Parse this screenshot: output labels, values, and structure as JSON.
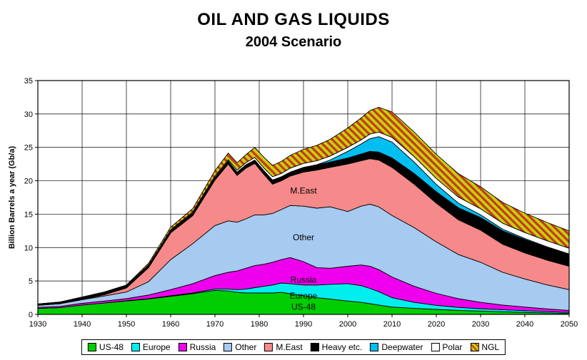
{
  "title": {
    "line1": "OIL AND GAS LIQUIDS",
    "line2": "2004 Scenario"
  },
  "chart_data": {
    "type": "area",
    "stacked": true,
    "title": "OIL AND GAS LIQUIDS",
    "subtitle": "2004 Scenario",
    "xlabel": "",
    "ylabel": "Billion Barrels a year (Gb/a)",
    "xlim": [
      1930,
      2050
    ],
    "ylim": [
      0,
      35
    ],
    "x_ticks": [
      1930,
      1940,
      1950,
      1960,
      1970,
      1980,
      1990,
      2000,
      2010,
      2020,
      2030,
      2040,
      2050
    ],
    "y_ticks": [
      0,
      5,
      10,
      15,
      20,
      25,
      30,
      35
    ],
    "grid": true,
    "legend_position": "bottom",
    "x": [
      1930,
      1935,
      1940,
      1945,
      1950,
      1955,
      1960,
      1965,
      1970,
      1973,
      1975,
      1977,
      1979,
      1981,
      1983,
      1985,
      1987,
      1990,
      1993,
      1996,
      2000,
      2003,
      2005,
      2007,
      2010,
      2015,
      2020,
      2025,
      2030,
      2035,
      2040,
      2045,
      2050
    ],
    "series": [
      {
        "name": "US-48",
        "color": "#00CE00",
        "values": [
          0.9,
          1.0,
          1.4,
          1.7,
          2.0,
          2.3,
          2.7,
          3.1,
          3.6,
          3.5,
          3.3,
          3.2,
          3.2,
          3.2,
          3.2,
          3.3,
          3.1,
          2.8,
          2.5,
          2.3,
          2.0,
          1.8,
          1.6,
          1.4,
          1.1,
          0.9,
          0.75,
          0.6,
          0.5,
          0.4,
          0.3,
          0.22,
          0.15
        ]
      },
      {
        "name": "Europe",
        "color": "#00EEEE",
        "values": [
          0,
          0,
          0,
          0,
          0.05,
          0.05,
          0.1,
          0.1,
          0.2,
          0.3,
          0.4,
          0.6,
          0.8,
          1.0,
          1.2,
          1.4,
          1.5,
          1.6,
          1.9,
          2.2,
          2.6,
          2.5,
          2.3,
          2.0,
          1.4,
          0.9,
          0.6,
          0.45,
          0.35,
          0.3,
          0.25,
          0.2,
          0.15
        ]
      },
      {
        "name": "Russia",
        "color": "#EE00EE",
        "values": [
          0.15,
          0.2,
          0.25,
          0.3,
          0.3,
          0.55,
          0.9,
          1.4,
          2.0,
          2.5,
          2.8,
          3.1,
          3.3,
          3.3,
          3.4,
          3.5,
          3.9,
          3.5,
          2.6,
          2.4,
          2.6,
          3.1,
          3.3,
          3.3,
          3.1,
          2.4,
          1.8,
          1.3,
          0.95,
          0.7,
          0.55,
          0.4,
          0.3
        ]
      },
      {
        "name": "Other",
        "color": "#A6CAF0",
        "values": [
          0.3,
          0.4,
          0.55,
          0.75,
          1.0,
          2.0,
          4.5,
          6.0,
          7.5,
          7.7,
          7.3,
          7.4,
          7.6,
          7.4,
          7.3,
          7.5,
          7.8,
          8.3,
          8.9,
          9.2,
          8.2,
          8.8,
          9.3,
          9.4,
          9.2,
          8.8,
          7.7,
          6.6,
          6.0,
          4.9,
          4.2,
          3.6,
          3.1
        ]
      },
      {
        "name": "M.East",
        "color": "#F68A8A",
        "values": [
          0,
          0,
          0.05,
          0.2,
          0.6,
          2.1,
          4.0,
          4.2,
          6.8,
          8.5,
          7.0,
          7.6,
          7.7,
          6.1,
          4.4,
          4.3,
          4.4,
          5.1,
          5.7,
          5.9,
          7.1,
          6.8,
          6.8,
          7.0,
          7.2,
          6.5,
          5.8,
          5.2,
          4.8,
          4.2,
          3.9,
          3.7,
          3.5
        ]
      },
      {
        "name": "Heavy etc.",
        "color": "#000000",
        "values": [
          0.2,
          0.25,
          0.3,
          0.3,
          0.3,
          0.3,
          0.35,
          0.4,
          0.4,
          0.45,
          0.5,
          0.5,
          0.5,
          0.55,
          0.6,
          0.6,
          0.6,
          0.7,
          0.75,
          0.8,
          0.9,
          1.0,
          1.1,
          1.2,
          1.4,
          1.6,
          1.7,
          1.8,
          1.9,
          2.0,
          2.0,
          1.9,
          1.8
        ]
      },
      {
        "name": "Deepwater",
        "color": "#00BEEF",
        "values": [
          0,
          0,
          0,
          0,
          0,
          0,
          0,
          0,
          0,
          0,
          0,
          0,
          0,
          0,
          0,
          0,
          0,
          0,
          0.05,
          0.3,
          1.0,
          1.5,
          1.9,
          2.3,
          2.4,
          1.7,
          1.1,
          0.7,
          0.4,
          0.25,
          0.15,
          0.1,
          0.05
        ]
      },
      {
        "name": "Polar",
        "color": "#FFFFFF",
        "values": [
          0,
          0,
          0,
          0.05,
          0.05,
          0.1,
          0.1,
          0.15,
          0.2,
          0.2,
          0.3,
          0.3,
          0.4,
          0.4,
          0.5,
          0.5,
          0.6,
          0.6,
          0.6,
          0.6,
          0.6,
          0.6,
          0.7,
          0.7,
          0.7,
          0.8,
          0.9,
          0.9,
          0.9,
          0.9,
          0.9,
          0.9,
          0.85
        ]
      },
      {
        "name": "NGL",
        "color": "#C8CE14",
        "hatch": true,
        "hatch_color": "#C23C10",
        "values": [
          0,
          0,
          0.05,
          0.05,
          0.1,
          0.25,
          0.4,
          0.5,
          0.8,
          1.0,
          1.1,
          1.2,
          1.5,
          1.6,
          1.7,
          1.8,
          1.9,
          2.1,
          2.3,
          2.5,
          2.9,
          3.3,
          3.5,
          3.7,
          3.8,
          3.7,
          3.6,
          3.5,
          3.3,
          3.1,
          2.9,
          2.75,
          2.6
        ]
      }
    ],
    "region_labels": [
      {
        "text": "M.East",
        "year": 1990,
        "value": 18.5
      },
      {
        "text": "Other",
        "year": 1990,
        "value": 11.5
      },
      {
        "text": "Russia",
        "year": 1990,
        "value": 5.2
      },
      {
        "text": "Europe",
        "year": 1990,
        "value": 2.8
      },
      {
        "text": "US-48",
        "year": 1990,
        "value": 1.1
      }
    ]
  }
}
